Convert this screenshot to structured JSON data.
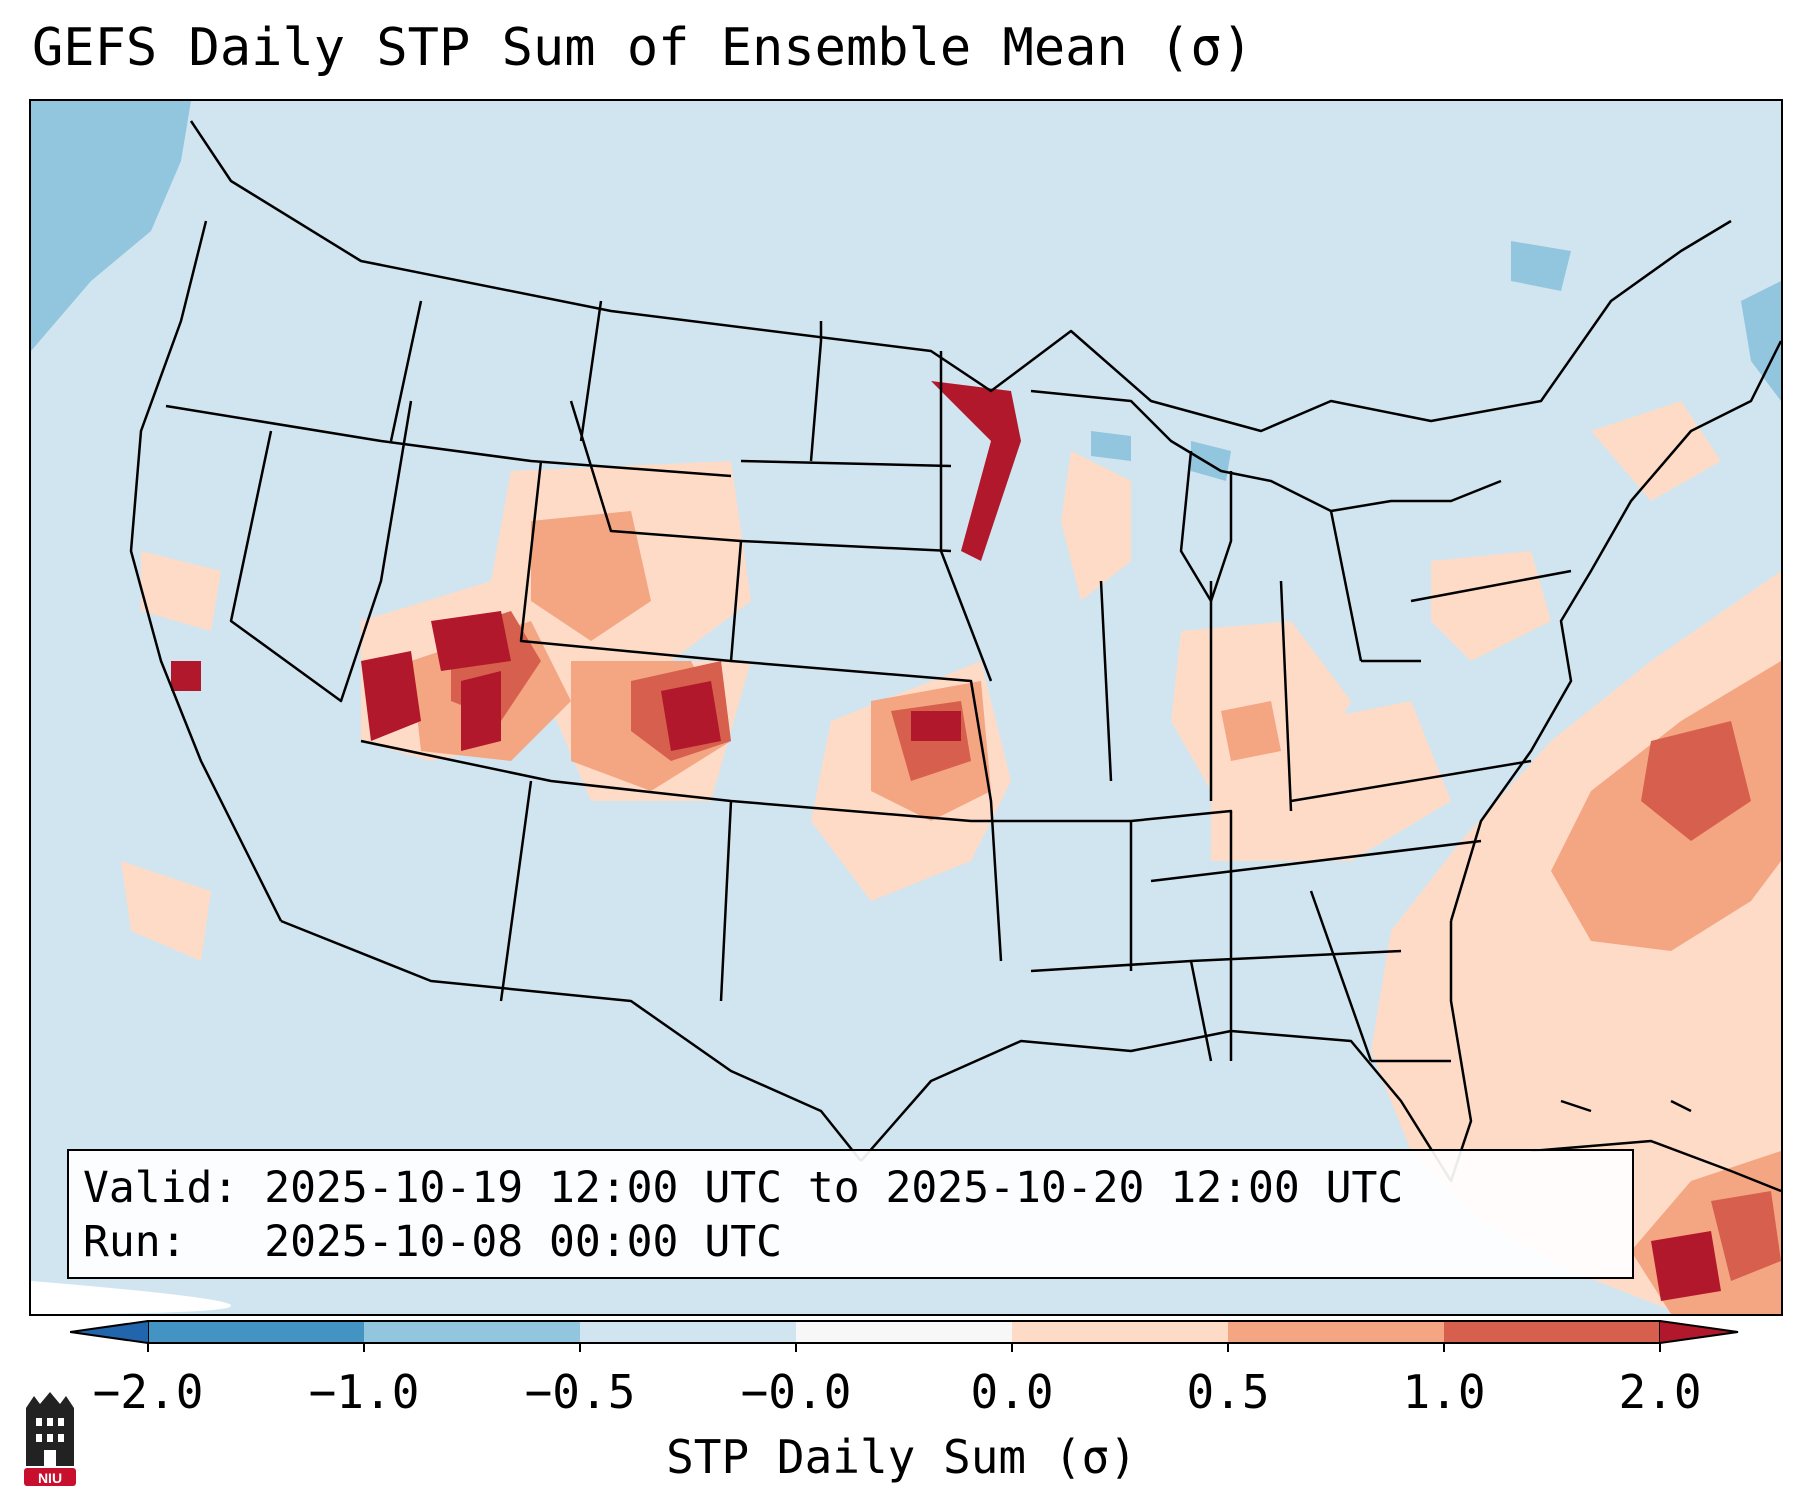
{
  "title": "GEFS Daily STP Sum of Ensemble Mean (σ)",
  "valid_line": "Valid: 2025-10-19 12:00 UTC to 2025-10-20 12:00 UTC",
  "run_line": "Run:   2025-10-08 00:00 UTC",
  "colorbar": {
    "label": "STP Daily Sum (σ)",
    "ticks": [
      "−2.0",
      "−1.0",
      "−0.5",
      "−0.0",
      "0.0",
      "0.5",
      "1.0",
      "2.0"
    ],
    "colors": [
      "#2166ac",
      "#4393c3",
      "#92c5de",
      "#d1e5f0",
      "#f7f7f7",
      "#fddbc7",
      "#f4a582",
      "#d6604d",
      "#b2182b"
    ]
  },
  "map": {
    "region": "CONUS",
    "background_value_color": "#d1e5f0",
    "feature_color": "#000000"
  },
  "logo": {
    "text": "NIU",
    "icon": "university-building-icon"
  }
}
